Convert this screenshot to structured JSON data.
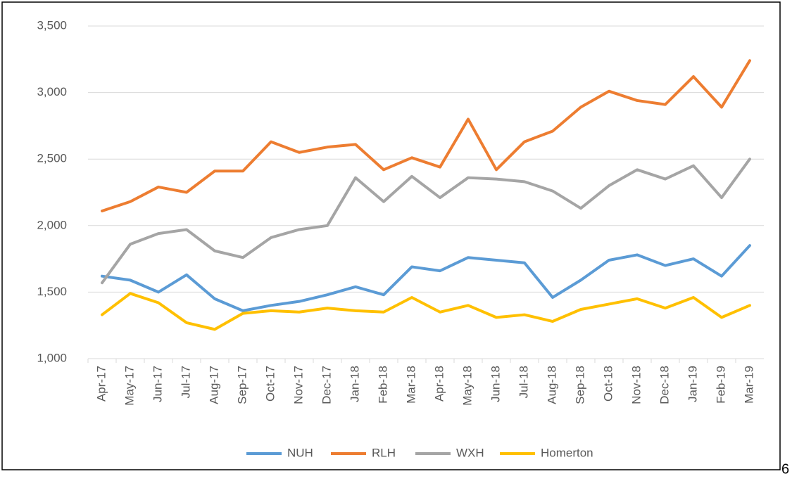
{
  "chart_data": {
    "type": "line",
    "categories": [
      "Apr-17",
      "May-17",
      "Jun-17",
      "Jul-17",
      "Aug-17",
      "Sep-17",
      "Oct-17",
      "Nov-17",
      "Dec-17",
      "Jan-18",
      "Feb-18",
      "Mar-18",
      "Apr-18",
      "May-18",
      "Jun-18",
      "Jul-18",
      "Aug-18",
      "Sep-18",
      "Oct-18",
      "Nov-18",
      "Dec-18",
      "Jan-19",
      "Feb-19",
      "Mar-19"
    ],
    "series": [
      {
        "name": "NUH",
        "color": "#5b9bd5",
        "values": [
          1620,
          1590,
          1500,
          1630,
          1450,
          1360,
          1400,
          1430,
          1480,
          1540,
          1480,
          1690,
          1660,
          1760,
          1740,
          1720,
          1460,
          1590,
          1740,
          1780,
          1700,
          1750,
          1620,
          1850
        ]
      },
      {
        "name": "RLH",
        "color": "#ed7d31",
        "values": [
          2110,
          2180,
          2290,
          2250,
          2410,
          2410,
          2630,
          2550,
          2590,
          2610,
          2420,
          2510,
          2440,
          2800,
          2420,
          2630,
          2710,
          2890,
          3010,
          2940,
          2910,
          3120,
          2890,
          3240
        ]
      },
      {
        "name": "WXH",
        "color": "#a5a5a5",
        "values": [
          1570,
          1860,
          1940,
          1970,
          1810,
          1760,
          1910,
          1970,
          2000,
          2360,
          2180,
          2370,
          2210,
          2360,
          2350,
          2330,
          2260,
          2130,
          2300,
          2420,
          2350,
          2450,
          2210,
          2500
        ]
      },
      {
        "name": "Homerton",
        "color": "#ffc000",
        "values": [
          1330,
          1490,
          1420,
          1270,
          1220,
          1340,
          1360,
          1350,
          1380,
          1360,
          1350,
          1460,
          1350,
          1400,
          1310,
          1330,
          1280,
          1370,
          1410,
          1450,
          1380,
          1460,
          1310,
          1400
        ]
      }
    ],
    "ylim": [
      1000,
      3500
    ],
    "yticks": [
      {
        "value": 1000,
        "label": "1,000"
      },
      {
        "value": 1500,
        "label": "1,500"
      },
      {
        "value": 2000,
        "label": "2,000"
      },
      {
        "value": 2500,
        "label": "2,500"
      },
      {
        "value": 3000,
        "label": "3,000"
      },
      {
        "value": 3500,
        "label": "3,500"
      }
    ],
    "grid": true,
    "legend": "bottom"
  },
  "page_number": "6"
}
